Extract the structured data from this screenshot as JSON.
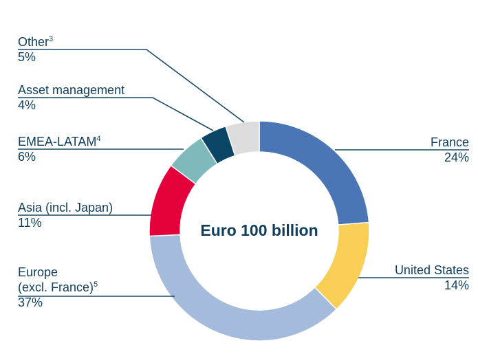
{
  "chart_data": {
    "type": "pie",
    "donut": true,
    "center_label": "Euro 100 billion",
    "slices": [
      {
        "label": "France",
        "sup": "",
        "value": 24,
        "display": "24%",
        "color": "#4a76b5"
      },
      {
        "label": "United States",
        "sup": "",
        "value": 14,
        "display": "14%",
        "color": "#f8ce55"
      },
      {
        "label": "Europe (excl. France)",
        "line1": "Europe",
        "line2": "(excl. France)",
        "sup": "5",
        "value": 37,
        "display": "37%",
        "color": "#a5bbdb"
      },
      {
        "label": "Asia (incl. Japan)",
        "sup": "",
        "value": 11,
        "display": "11%",
        "color": "#e4003a"
      },
      {
        "label": "EMEA-LATAM",
        "sup": "4",
        "value": 6,
        "display": "6%",
        "color": "#80b9bb"
      },
      {
        "label": "Asset management",
        "sup": "",
        "value": 4,
        "display": "4%",
        "color": "#0a4565"
      },
      {
        "label": "Other",
        "sup": "3",
        "value": 5,
        "display": "5%",
        "color": "#dcdcdc"
      }
    ],
    "start": "top",
    "direction": "clockwise"
  }
}
